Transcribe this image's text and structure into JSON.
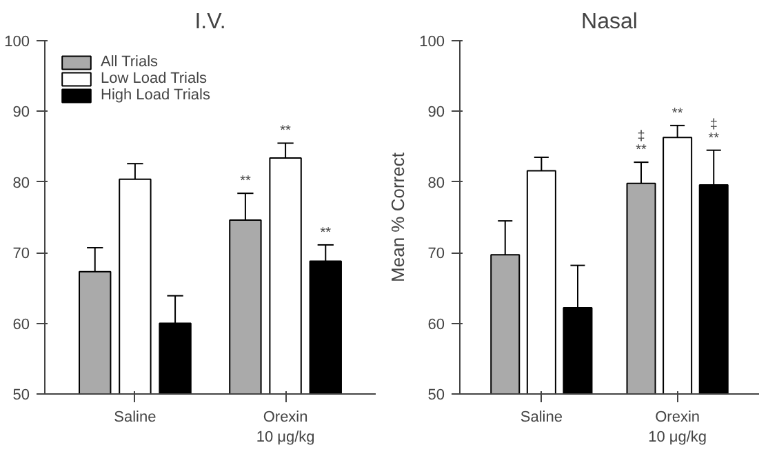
{
  "chart_data": [
    {
      "type": "bar",
      "title": "I.V.",
      "categories": [
        "Saline",
        "Orexin\n10 μg/kg"
      ],
      "ylim": [
        50,
        100
      ],
      "yticks": [
        50,
        60,
        70,
        80,
        90,
        100
      ],
      "legend": "top left",
      "grid": false,
      "series": [
        {
          "name": "All Trials",
          "color": "#aaaaaa",
          "values": [
            67.3,
            74.6
          ],
          "errors": [
            3.4,
            3.8
          ],
          "value_labels": [
            null,
            "**"
          ]
        },
        {
          "name": "Low Load Trials",
          "color": "#ffffff",
          "values": [
            80.4,
            83.4
          ],
          "errors": [
            2.2,
            2.1
          ],
          "value_labels": [
            null,
            "**"
          ]
        },
        {
          "name": "High Load Trials",
          "color": "#000000",
          "values": [
            60.0,
            68.8
          ],
          "errors": [
            3.9,
            2.3
          ],
          "value_labels": [
            null,
            "**"
          ]
        }
      ]
    },
    {
      "type": "bar",
      "title": "Nasal",
      "ylabel": "Mean % Correct",
      "categories": [
        "Saline",
        "Orexin\n10 μg/kg"
      ],
      "ylim": [
        50,
        100
      ],
      "yticks": [
        50,
        60,
        70,
        80,
        90,
        100
      ],
      "grid": false,
      "series": [
        {
          "color": "#aaaaaa",
          "values": [
            69.7,
            79.8
          ],
          "errors": [
            4.8,
            3.0
          ],
          "value_labels": [
            null,
            "‡\n**"
          ]
        },
        {
          "color": "#ffffff",
          "values": [
            81.6,
            86.3
          ],
          "errors": [
            1.9,
            1.7
          ],
          "value_labels": [
            null,
            "**"
          ]
        },
        {
          "color": "#000000",
          "values": [
            62.2,
            79.6
          ],
          "errors": [
            6.0,
            4.9
          ],
          "value_labels": [
            null,
            "‡\n**"
          ]
        }
      ]
    }
  ]
}
